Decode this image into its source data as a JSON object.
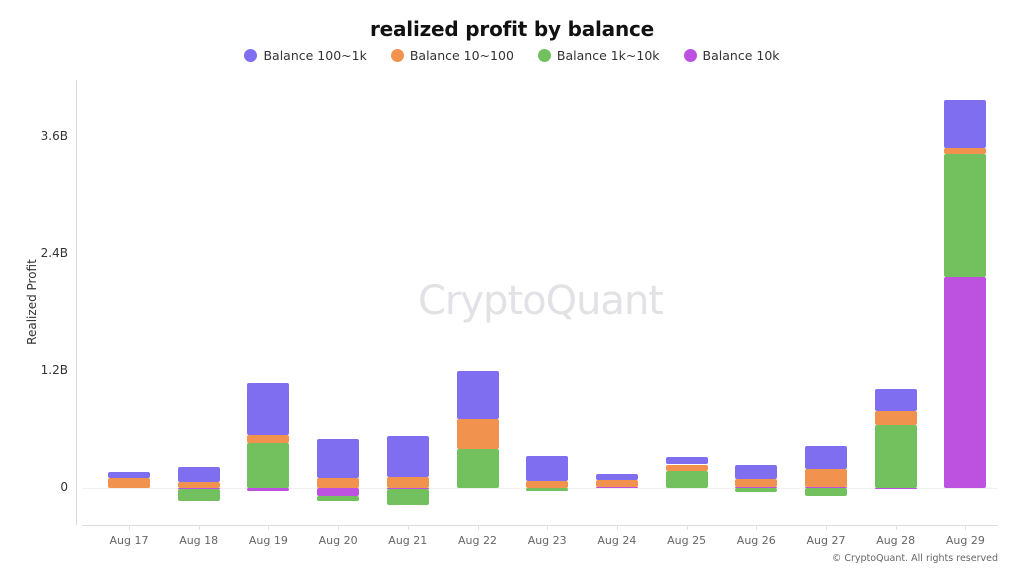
{
  "title": "realized profit by balance",
  "watermark": "CryptoQuant",
  "copyright": "© CryptoQuant. All rights reserved",
  "legend": [
    {
      "label": "Balance 100~1k",
      "color": "#7f6ff0"
    },
    {
      "label": "Balance 10~100",
      "color": "#f2924f"
    },
    {
      "label": "Balance 1k~10k",
      "color": "#72c15e"
    },
    {
      "label": "Balance 10k",
      "color": "#bd52e0"
    }
  ],
  "y_axis": {
    "label": "Realized Profit",
    "ticks": [
      "0",
      "1.2B",
      "2.4B",
      "3.6B"
    ]
  },
  "chart_data": {
    "type": "bar",
    "stacked": true,
    "title": "realized profit by balance",
    "xlabel": "",
    "ylabel": "Realized Profit",
    "ylim": [
      -0.3,
      4.0
    ],
    "yticks": [
      0,
      1.2,
      2.4,
      3.6
    ],
    "ytick_labels": [
      "0",
      "1.2B",
      "2.4B",
      "3.6B"
    ],
    "units": "B (billions)",
    "grid": false,
    "legend_position": "top",
    "categories": [
      "Aug 17",
      "Aug 18",
      "Aug 19",
      "Aug 20",
      "Aug 21",
      "Aug 22",
      "Aug 23",
      "Aug 24",
      "Aug 25",
      "Aug 26",
      "Aug 27",
      "Aug 28",
      "Aug 29"
    ],
    "series": [
      {
        "name": "Balance 10k",
        "color": "#bd52e0",
        "values": [
          0.0,
          -0.01,
          -0.03,
          -0.08,
          -0.01,
          0.0,
          0.0,
          0.01,
          0.0,
          0.01,
          0.01,
          -0.01,
          2.15
        ]
      },
      {
        "name": "Balance 1k~10k",
        "color": "#72c15e",
        "values": [
          0.0,
          -0.12,
          0.46,
          -0.05,
          -0.16,
          0.4,
          -0.03,
          0.0,
          0.17,
          -0.04,
          -0.08,
          0.64,
          1.26
        ]
      },
      {
        "name": "Balance 10~100",
        "color": "#f2924f",
        "values": [
          0.1,
          0.06,
          0.08,
          0.1,
          0.11,
          0.3,
          0.07,
          0.07,
          0.07,
          0.08,
          0.18,
          0.15,
          0.06
        ]
      },
      {
        "name": "Balance 100~1k",
        "color": "#7f6ff0",
        "values": [
          0.06,
          0.15,
          0.53,
          0.4,
          0.42,
          0.5,
          0.26,
          0.06,
          0.08,
          0.14,
          0.24,
          0.22,
          0.49
        ]
      }
    ]
  }
}
